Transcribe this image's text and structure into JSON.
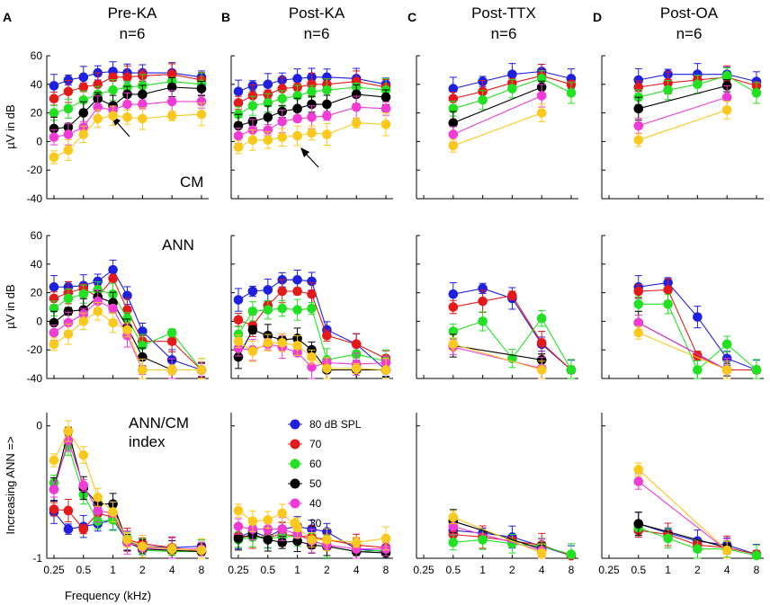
{
  "figure": {
    "panel_letters": [
      "A",
      "B",
      "C",
      "D"
    ],
    "column_titles": [
      [
        "Pre-KA",
        "n=6"
      ],
      [
        "Post-KA",
        "n=6"
      ],
      [
        "Post-TTX",
        "n=6"
      ],
      [
        "Post-OA",
        "n=6"
      ]
    ],
    "xlabel": "Frequency (kHz)",
    "row_ylabels": [
      "µV in dB",
      "µV in dB",
      "Increasing ANN =>"
    ],
    "row_titles": [
      [
        "CM"
      ],
      [
        "ANN"
      ],
      [
        "ANN/CM",
        "index"
      ]
    ],
    "legend_entries": [
      "80 dB SPL",
      "70",
      "60",
      "50",
      "40",
      "30"
    ]
  },
  "chart_data": {
    "type": "line",
    "series_names": [
      "80 dB SPL",
      "70",
      "60",
      "50",
      "40",
      "30"
    ],
    "colors": {
      "80": "#1f1fe0",
      "70": "#e41a1a",
      "60": "#22e022",
      "50": "#000000",
      "40": "#f03bd5",
      "30": "#fbc81e"
    },
    "x_ticks": [
      "0.25",
      "0.5",
      "1",
      "2",
      "4",
      "8"
    ],
    "freqs_full": [
      0.25,
      0.35,
      0.5,
      0.7,
      1,
      1.4,
      2,
      4,
      8
    ],
    "freqs_reduced": [
      0.5,
      1,
      2,
      4,
      8
    ],
    "rows": [
      {
        "ylim": [
          -40,
          60
        ],
        "yticks": [
          -40,
          -20,
          0,
          20,
          40,
          60
        ]
      },
      {
        "ylim": [
          -40,
          60
        ],
        "yticks": [
          -40,
          -20,
          0,
          20,
          40,
          60
        ]
      },
      {
        "ylim": [
          -1,
          0.1
        ],
        "yticks": [
          -1,
          0
        ],
        "ytick_labels": [
          "-1",
          "0"
        ]
      }
    ],
    "panels": [
      {
        "id": "A-CM",
        "series": {
          "80": [
            39,
            43,
            45,
            48,
            49,
            48,
            48,
            48,
            45
          ],
          "70": [
            30,
            35,
            38,
            40,
            45,
            45,
            46,
            47,
            43
          ],
          "60": [
            20,
            23,
            29,
            33,
            36,
            38,
            39,
            42,
            40
          ],
          "50": [
            9,
            10,
            20,
            30,
            25,
            33,
            33,
            38,
            37
          ],
          "40": [
            3,
            5,
            10,
            24,
            22,
            26,
            26,
            28,
            28
          ],
          "30": [
            -11,
            -6,
            5,
            16,
            18,
            17,
            16,
            18,
            19
          ]
        }
      },
      {
        "id": "B-CM",
        "series": {
          "80": [
            35,
            39,
            40,
            43,
            44,
            45,
            45,
            44,
            40
          ],
          "70": [
            27,
            32,
            33,
            37,
            38,
            40,
            40,
            42,
            38
          ],
          "60": [
            19,
            25,
            27,
            30,
            32,
            35,
            36,
            38,
            36
          ],
          "50": [
            11,
            14,
            17,
            21,
            23,
            26,
            26,
            33,
            31
          ],
          "40": [
            4,
            8,
            8,
            14,
            16,
            17,
            18,
            24,
            23
          ],
          "30": [
            -4,
            1,
            1,
            3,
            4,
            6,
            5,
            13,
            12
          ]
        }
      },
      {
        "id": "C-CM",
        "series": {
          "80": [
            37,
            42,
            47,
            49,
            44
          ],
          "70": [
            30,
            35,
            41,
            46,
            40
          ],
          "60": [
            23,
            29,
            37,
            44,
            34
          ],
          "50": [
            13,
            null,
            null,
            38,
            null
          ],
          "40": [
            5,
            null,
            null,
            32,
            null
          ],
          "30": [
            -3,
            null,
            null,
            20,
            null
          ]
        }
      },
      {
        "id": "D-CM",
        "series": {
          "80": [
            43,
            47,
            47,
            47,
            42
          ],
          "70": [
            38,
            41,
            43,
            45,
            39
          ],
          "60": [
            31,
            36,
            40,
            46,
            34
          ],
          "50": [
            23,
            null,
            null,
            39,
            null
          ],
          "40": [
            11,
            null,
            null,
            31,
            null
          ],
          "30": [
            1,
            null,
            null,
            22,
            null
          ]
        }
      },
      {
        "id": "A-ANN",
        "series": {
          "80": [
            24,
            24,
            25,
            28,
            36,
            18,
            -7,
            -27,
            -34
          ],
          "70": [
            16,
            20,
            23,
            17,
            30,
            8,
            -14,
            -14,
            -34
          ],
          "60": [
            9,
            16,
            19,
            22,
            19,
            2,
            -17,
            -8,
            -34
          ],
          "50": [
            -1,
            7,
            8,
            17,
            13,
            -4,
            -25,
            -34,
            -34
          ],
          "40": [
            -8,
            -1,
            5,
            14,
            9,
            -10,
            -34,
            -34,
            -34
          ],
          "30": [
            -16,
            -9,
            0,
            7,
            -1,
            -6,
            -34,
            -34,
            -34
          ]
        }
      },
      {
        "id": "B-ANN",
        "series": {
          "80": [
            15,
            21,
            22,
            29,
            29,
            28,
            -6,
            -16,
            -34
          ],
          "70": [
            1,
            -3,
            11,
            21,
            21,
            19,
            -10,
            -16,
            -26
          ],
          "60": [
            -9,
            7,
            8,
            9,
            8,
            9,
            -27,
            -23,
            -28
          ],
          "50": [
            -25,
            -6,
            -10,
            -13,
            -12,
            -20,
            -34,
            -34,
            -34
          ],
          "40": [
            -19,
            -20,
            -16,
            -18,
            -22,
            -32,
            -29,
            -30,
            -29
          ],
          "30": [
            -14,
            -21,
            -15,
            -15,
            -17,
            -25,
            -33,
            -33,
            -34
          ]
        }
      },
      {
        "id": "C-ANN",
        "series": {
          "80": [
            19,
            23,
            16,
            -16,
            -34
          ],
          "70": [
            10,
            14,
            18,
            -15,
            -34
          ],
          "60": [
            -7,
            0,
            -26,
            2,
            -34
          ],
          "50": [
            -17,
            null,
            null,
            -27,
            null
          ],
          "40": [
            -18,
            null,
            null,
            -33,
            null
          ],
          "30": [
            -16,
            null,
            null,
            -34,
            null
          ]
        }
      },
      {
        "id": "D-ANN",
        "series": {
          "80": [
            24,
            27,
            3,
            -26,
            -34
          ],
          "70": [
            21,
            22,
            -24,
            -34,
            -34
          ],
          "60": [
            12,
            12,
            -34,
            -16,
            -34
          ],
          "50": [
            -1,
            null,
            null,
            -34,
            null
          ],
          "40": [
            -1,
            null,
            null,
            -34,
            null
          ],
          "30": [
            -8,
            null,
            null,
            -34,
            null
          ]
        }
      },
      {
        "id": "A-IDX",
        "series": {
          "80": [
            -0.65,
            -0.78,
            -0.76,
            -0.74,
            -0.71,
            -0.87,
            -0.91,
            -0.92,
            -0.91
          ],
          "70": [
            -0.63,
            -0.64,
            -0.78,
            -0.66,
            -0.69,
            -0.86,
            -0.89,
            -0.92,
            -0.95
          ],
          "60": [
            -0.43,
            -0.15,
            -0.52,
            -0.72,
            -0.71,
            -0.85,
            -0.94,
            -0.95,
            -0.95
          ],
          "50": [
            -0.48,
            -0.04,
            -0.47,
            -0.59,
            -0.59,
            -0.88,
            -0.93,
            -0.94,
            -0.95
          ],
          "40": [
            -0.48,
            -0.11,
            -0.45,
            -0.64,
            -0.66,
            -0.88,
            -0.92,
            -0.93,
            -0.93
          ],
          "30": [
            -0.26,
            -0.04,
            -0.22,
            -0.54,
            -0.65,
            -0.86,
            -0.91,
            -0.93,
            -0.94
          ]
        }
      },
      {
        "id": "B-IDX",
        "series": {
          "80": [
            -0.84,
            -0.8,
            -0.84,
            -0.78,
            -0.76,
            -0.78,
            -0.8,
            -0.93,
            -0.95
          ],
          "70": [
            -0.83,
            -0.84,
            -0.84,
            -0.82,
            -0.83,
            -0.84,
            -0.86,
            -0.9,
            -0.92
          ],
          "60": [
            -0.86,
            -0.84,
            -0.85,
            -0.84,
            -0.83,
            -0.86,
            -0.91,
            -0.95,
            -0.94
          ],
          "50": [
            -0.85,
            -0.82,
            -0.86,
            -0.88,
            -0.87,
            -0.9,
            -0.91,
            -0.95,
            -0.96
          ],
          "40": [
            -0.76,
            -0.78,
            -0.78,
            -0.78,
            -0.82,
            -0.87,
            -0.9,
            -0.93,
            -0.93
          ],
          "30": [
            -0.64,
            -0.72,
            -0.71,
            -0.66,
            -0.77,
            -0.86,
            -0.86,
            -0.88,
            -0.85
          ]
        }
      },
      {
        "id": "C-IDX",
        "series": {
          "80": [
            -0.79,
            -0.81,
            -0.84,
            -0.91,
            -0.98
          ],
          "70": [
            -0.82,
            -0.84,
            -0.87,
            -0.9,
            -0.98
          ],
          "60": [
            -0.88,
            -0.86,
            -0.89,
            -0.91,
            -0.97
          ],
          "50": [
            -0.72,
            null,
            null,
            -0.93,
            null
          ],
          "40": [
            -0.76,
            null,
            null,
            -0.94,
            null
          ],
          "30": [
            -0.69,
            null,
            null,
            -0.96,
            null
          ]
        }
      },
      {
        "id": "D-IDX",
        "series": {
          "80": [
            -0.74,
            -0.81,
            -0.87,
            -0.9,
            -0.97
          ],
          "70": [
            -0.79,
            -0.82,
            -0.9,
            -0.92,
            -0.97
          ],
          "60": [
            -0.77,
            -0.85,
            -0.93,
            -0.93,
            -0.98
          ],
          "50": [
            -0.74,
            null,
            null,
            -0.92,
            null
          ],
          "40": [
            -0.42,
            null,
            null,
            -0.94,
            null
          ],
          "30": [
            -0.33,
            null,
            null,
            -0.94,
            null
          ]
        }
      }
    ]
  }
}
